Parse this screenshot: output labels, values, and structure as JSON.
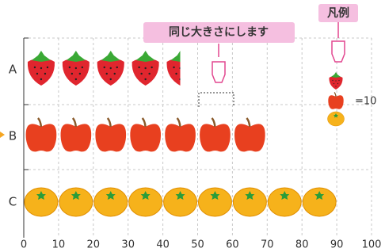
{
  "chart_data": {
    "type": "pictograph",
    "annotation": "同じ大きさにします",
    "legend_title": "凡例",
    "legend_label": "=10",
    "categories": [
      "A",
      "B",
      "C"
    ],
    "values": [
      45,
      70,
      90
    ],
    "unit": 10,
    "colors": [
      "#e0262e",
      "#e8401f",
      "#f6b21b"
    ],
    "xlim": [
      0,
      100
    ],
    "xticks": [
      0,
      10,
      20,
      30,
      40,
      50,
      60,
      70,
      80,
      90,
      100
    ],
    "grid": true
  }
}
